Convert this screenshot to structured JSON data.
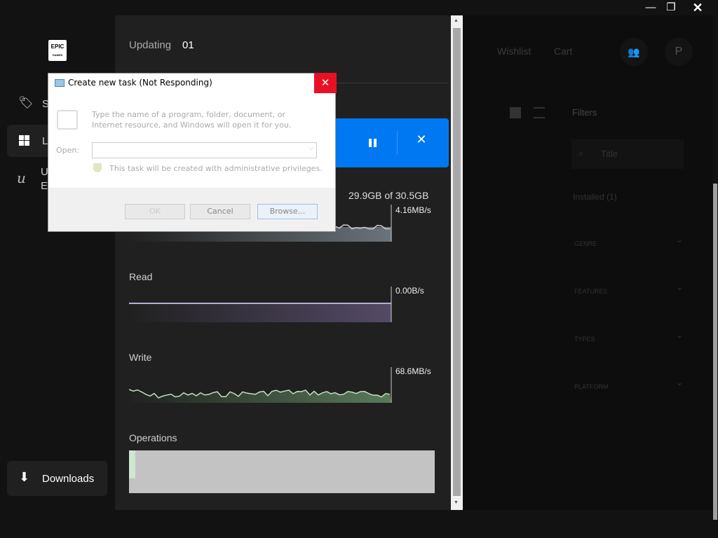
{
  "window_controls": {
    "minimize": "—",
    "restore": "❐",
    "close": "✕"
  },
  "sidebar": {
    "logo": "EPIC GAMES",
    "items": [
      {
        "label": "S",
        "icon": "tag-icon"
      },
      {
        "label": "L",
        "icon": "grid-icon"
      },
      {
        "label": "U\nE",
        "icon": "unreal-icon"
      }
    ],
    "downloads": "Downloads"
  },
  "panel": {
    "title": "Updating",
    "count": "01",
    "size_progress": "29.9GB of 30.5GB",
    "network_rate": "4.16MB/s",
    "read_label": "Read",
    "read_rate": "0.00B/s",
    "write_label": "Write",
    "write_rate": "68.6MB/s",
    "operations_label": "Operations"
  },
  "header": {
    "wishlist": "Wishlist",
    "cart": "Cart",
    "avatar": "P"
  },
  "filters": {
    "title": "Filters",
    "search_placeholder": "Title",
    "installed": "Installed (1)",
    "groups": [
      "GENRE",
      "FEATURES",
      "TYPES",
      "PLATFORM"
    ]
  },
  "dialog": {
    "title": "Create new task (Not Responding)",
    "description": "Type the name of a program, folder, document, or Internet resource, and Windows will open it for you.",
    "open_label": "Open:",
    "open_value": "",
    "admin_note": "This task will be created with administrative privileges.",
    "ok": "OK",
    "cancel": "Cancel",
    "browse": "Browse..."
  },
  "colors": {
    "accent": "#0078f2",
    "dialog_close": "#e81123"
  }
}
